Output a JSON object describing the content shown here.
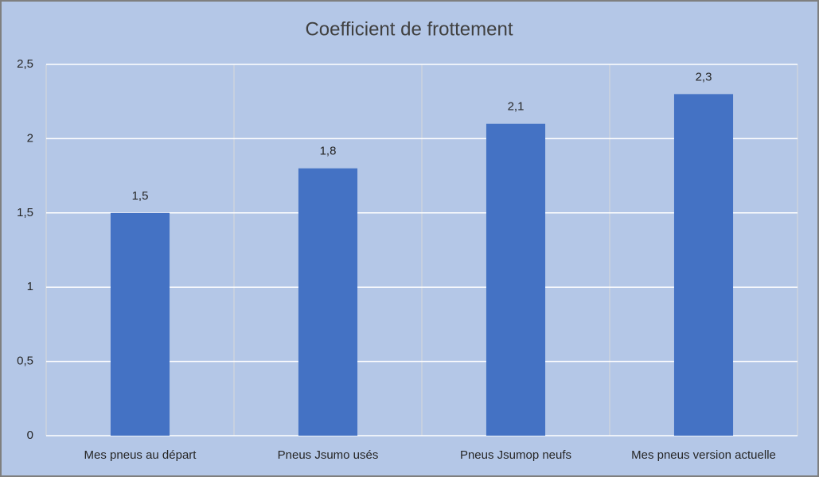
{
  "chart_data": {
    "type": "bar",
    "title": "Coefficient de frottement",
    "categories": [
      "Mes pneus au départ",
      "Pneus Jsumo usés",
      "Pneus Jsumop neufs",
      "Mes pneus version actuelle"
    ],
    "values": [
      1.5,
      1.8,
      2.1,
      2.3
    ],
    "value_labels": [
      "1,5",
      "1,8",
      "2,1",
      "2,3"
    ],
    "color": "#4472c4",
    "ylim": [
      0,
      2.5
    ],
    "yticks": [
      0,
      {
        "value": 0.5,
        "label": "0,5"
      },
      1,
      {
        "value": 1.5,
        "label": "1,5"
      },
      2,
      {
        "value": 2.5,
        "label": "2,5"
      }
    ],
    "grid": true
  }
}
